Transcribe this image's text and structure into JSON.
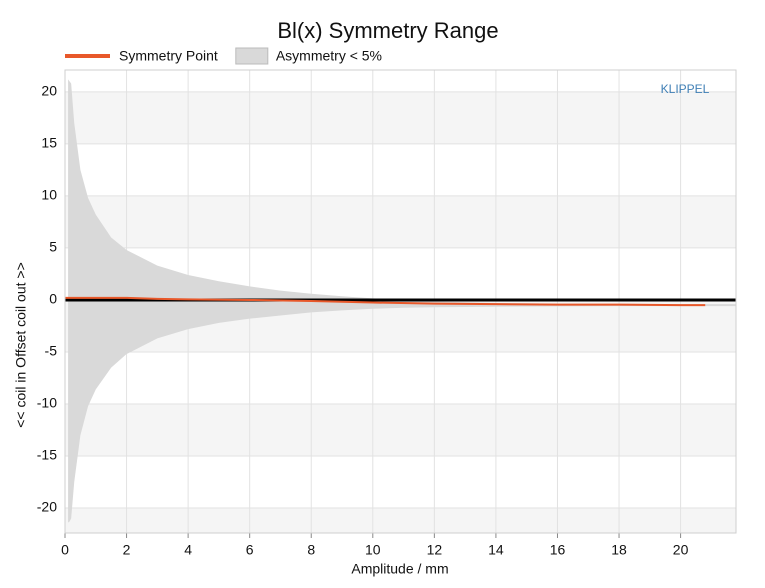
{
  "chart_data": {
    "type": "line",
    "title": "Bl(x) Symmetry Range",
    "annotation": "KLIPPEL",
    "x_label": "Amplitude / mm",
    "y_label": "<< coil in Offset coil out >>",
    "xlim": [
      0,
      21.8
    ],
    "ylim": [
      -22.4,
      22.1
    ],
    "xticks": [
      0,
      2,
      4,
      6,
      8,
      10,
      12,
      14,
      16,
      18,
      20
    ],
    "yticks": [
      -20,
      -15,
      -10,
      -5,
      0,
      5,
      10,
      15,
      20
    ],
    "grid": true,
    "series": [
      {
        "name": "Symmetry Point",
        "style": "line",
        "color": "#e8582a",
        "x": [
          0,
          1,
          2,
          3,
          4,
          6,
          8,
          10,
          12,
          14,
          16,
          18,
          20,
          20.8
        ],
        "values": [
          0.2,
          0.2,
          0.2,
          0.1,
          0.05,
          0,
          -0.1,
          -0.25,
          -0.35,
          -0.4,
          -0.45,
          -0.45,
          -0.5,
          -0.5
        ]
      },
      {
        "name": "Asymmetry < 5%",
        "style": "area",
        "color": "#d9d9d9",
        "x": [
          0.1,
          0.15,
          0.2,
          0.3,
          0.5,
          0.75,
          1,
          1.5,
          2,
          3,
          4,
          5,
          6,
          7,
          8,
          9,
          10,
          11,
          12,
          14,
          16,
          18,
          20,
          21.8
        ],
        "upper": [
          21.2,
          21.0,
          20.8,
          17,
          12.5,
          9.8,
          8.2,
          6,
          4.8,
          3.3,
          2.4,
          1.8,
          1.3,
          0.9,
          0.6,
          0.35,
          0.15,
          0,
          -0.15,
          -0.3,
          -0.35,
          -0.4,
          -0.4,
          -0.4
        ],
        "lower": [
          -21.4,
          -21.3,
          -21,
          -17.5,
          -13,
          -10.2,
          -8.6,
          -6.5,
          -5.2,
          -3.7,
          -2.8,
          -2.2,
          -1.8,
          -1.5,
          -1.2,
          -1.0,
          -0.85,
          -0.75,
          -0.7,
          -0.65,
          -0.62,
          -0.6,
          -0.6,
          -0.6
        ]
      }
    ]
  }
}
